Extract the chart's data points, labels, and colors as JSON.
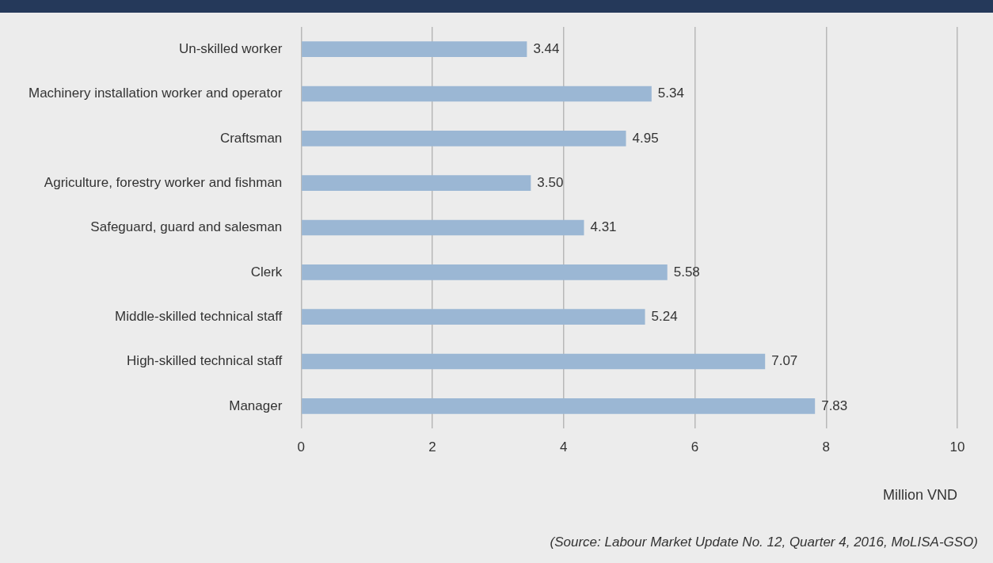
{
  "chart_data": {
    "type": "bar",
    "orientation": "horizontal",
    "categories": [
      "Un-skilled worker",
      "Machinery installation worker and operator",
      "Craftsman",
      "Agriculture, forestry worker and fishman",
      "Safeguard, guard and salesman",
      "Clerk",
      "Middle-skilled technical staff",
      "High-skilled technical staff",
      "Manager"
    ],
    "values": [
      3.44,
      5.34,
      4.95,
      3.5,
      4.31,
      5.58,
      5.24,
      7.07,
      7.83
    ],
    "value_labels": [
      "3.44",
      "5.34",
      "4.95",
      "3.50",
      "4.31",
      "5.58",
      "5.24",
      "7.07",
      "7.83"
    ],
    "color": "#9bb7d4",
    "xlim": [
      0,
      10
    ],
    "xticks": [
      0,
      2,
      4,
      6,
      8,
      10
    ],
    "grid": "x",
    "legend": false,
    "xlabel": "Million VND",
    "annotations": [
      "(Source: Labour Market Update No. 12, Quarter 4, 2016, MoLISA-GSO)"
    ]
  }
}
